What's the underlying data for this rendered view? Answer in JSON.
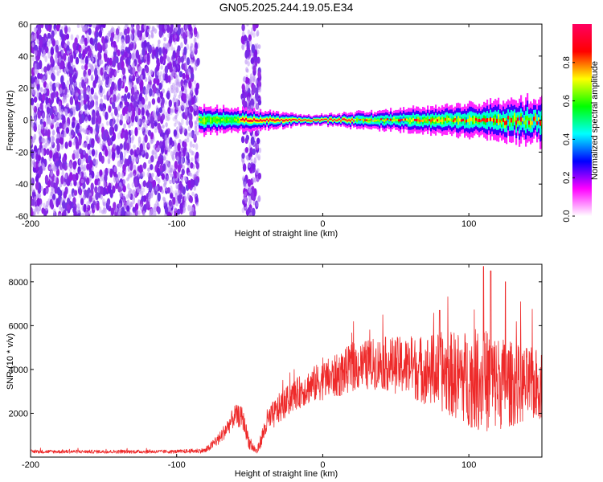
{
  "title": "GN05.2025.244.19.05.E34",
  "chart_data": [
    {
      "type": "heatmap",
      "xlabel": "Height of straight line (km)",
      "ylabel": "Frequency (Hz)",
      "xlim": [
        -200,
        150
      ],
      "ylim": [
        -60,
        60
      ],
      "x_ticks": [
        -200,
        -100,
        0,
        100
      ],
      "y_ticks": [
        60,
        40,
        20,
        0,
        -20,
        -40,
        -60
      ],
      "colorbar": {
        "label": "Normalized spectral amplitude",
        "range": [
          0.0,
          1.0
        ],
        "ticks": [
          "0.0",
          "0.2",
          "0.4",
          "0.6",
          "0.8"
        ],
        "colors": [
          "#ffffff",
          "#ff00ff",
          "#0000ff",
          "#00ffff",
          "#00ff00",
          "#ffff00",
          "#ff0000",
          "#ff0060"
        ]
      },
      "regions": [
        {
          "name": "noise",
          "x_from": -200,
          "x_to": -85,
          "freq_spread": [
            -60,
            60
          ],
          "amplitude": 0.15
        },
        {
          "name": "noise-strip",
          "x_from": -55,
          "x_to": -43,
          "freq_spread": [
            -60,
            60
          ],
          "amplitude": 0.1
        },
        {
          "name": "signal-band",
          "x_from": -85,
          "x_to": 150,
          "center_freq": 0,
          "halfwidth_hz": [
            9,
            3,
            8,
            14
          ],
          "amplitude": 1.0
        }
      ]
    },
    {
      "type": "line",
      "xlabel": "Height of straight line (km)",
      "ylabel": "SNR (10 * v/v)",
      "xlim": [
        -200,
        150
      ],
      "ylim": [
        0,
        8800
      ],
      "x_ticks": [
        -200,
        -100,
        0,
        100
      ],
      "y_ticks": [
        2000,
        4000,
        6000,
        8000
      ],
      "color": "#ee2a2a",
      "envelope": {
        "x": [
          -200,
          -100,
          -80,
          -70,
          -60,
          -55,
          -50,
          -45,
          -38,
          -30,
          -20,
          -10,
          0,
          10,
          20,
          40,
          60,
          80,
          100,
          110,
          120,
          135,
          150
        ],
        "y": [
          250,
          250,
          300,
          900,
          1900,
          1800,
          600,
          250,
          1600,
          2200,
          2800,
          3200,
          3500,
          3700,
          4100,
          4300,
          4100,
          3900,
          3600,
          3500,
          3400,
          3300,
          3300
        ],
        "amp": [
          80,
          80,
          120,
          300,
          500,
          500,
          300,
          150,
          600,
          700,
          700,
          800,
          900,
          1000,
          1100,
          1200,
          1400,
          1800,
          2200,
          2400,
          2200,
          1800,
          1600
        ]
      },
      "peaks": [
        {
          "x": 110,
          "y": 8700
        },
        {
          "x": 115,
          "y": 8500
        },
        {
          "x": 80,
          "y": 6700
        },
        {
          "x": 125,
          "y": 8000
        }
      ]
    }
  ]
}
